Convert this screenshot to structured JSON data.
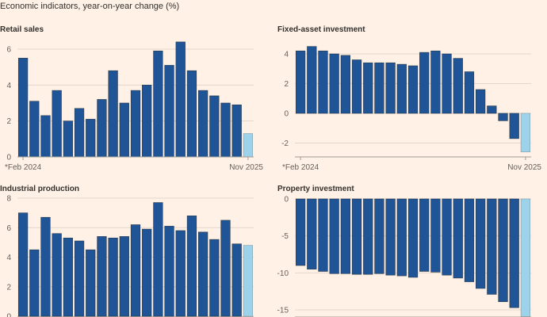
{
  "title": "Economic indicators, year-on-year change (%)",
  "colors": {
    "bar": "#1f5596",
    "latest_bar": "#9dd3ea",
    "grid": "#e3d6ca",
    "axis": "#a39b94",
    "background": "#fff1e5"
  },
  "chart_data": [
    {
      "type": "bar",
      "title": "Retail sales",
      "x_start_label": "*Feb 2024",
      "x_end_label": "Nov 2025",
      "yticks": [
        0,
        2,
        4,
        6
      ],
      "ylim": [
        0,
        6.5
      ],
      "values": [
        5.5,
        3.1,
        2.3,
        3.7,
        2.0,
        2.7,
        2.1,
        3.2,
        4.8,
        3.0,
        3.7,
        4.0,
        5.9,
        5.1,
        6.4,
        4.8,
        3.7,
        3.4,
        3.0,
        2.9,
        1.3
      ]
    },
    {
      "type": "bar",
      "title": "Fixed-asset investment",
      "x_start_label": "*Feb 2024",
      "x_end_label": "Nov 2025",
      "yticks": [
        -2,
        0,
        2,
        4
      ],
      "ylim": [
        -2.9,
        4.8
      ],
      "values": [
        4.2,
        4.5,
        4.2,
        4.0,
        3.9,
        3.6,
        3.4,
        3.4,
        3.4,
        3.3,
        3.2,
        4.1,
        4.2,
        4.0,
        3.7,
        2.8,
        1.6,
        0.5,
        -0.5,
        -1.7,
        -2.6
      ]
    },
    {
      "type": "bar",
      "title": "Industrial production",
      "yticks": [
        0,
        2,
        4,
        6,
        8
      ],
      "ylim": [
        0,
        8
      ],
      "values": [
        7.0,
        4.5,
        6.7,
        5.6,
        5.3,
        5.1,
        4.5,
        5.4,
        5.3,
        5.4,
        6.2,
        5.9,
        7.7,
        6.1,
        5.8,
        6.8,
        5.7,
        5.2,
        6.5,
        4.9,
        4.8
      ]
    },
    {
      "type": "bar",
      "title": "Property investment",
      "yticks": [
        -15,
        -10,
        -5,
        0
      ],
      "ylim": [
        -15.9,
        0
      ],
      "values": [
        -9.0,
        -9.5,
        -9.8,
        -10.1,
        -10.1,
        -10.2,
        -10.2,
        -10.1,
        -10.3,
        -10.4,
        -10.6,
        -9.8,
        -9.9,
        -10.3,
        -10.7,
        -11.2,
        -12.1,
        -12.9,
        -13.9,
        -14.7,
        -15.9
      ]
    }
  ]
}
